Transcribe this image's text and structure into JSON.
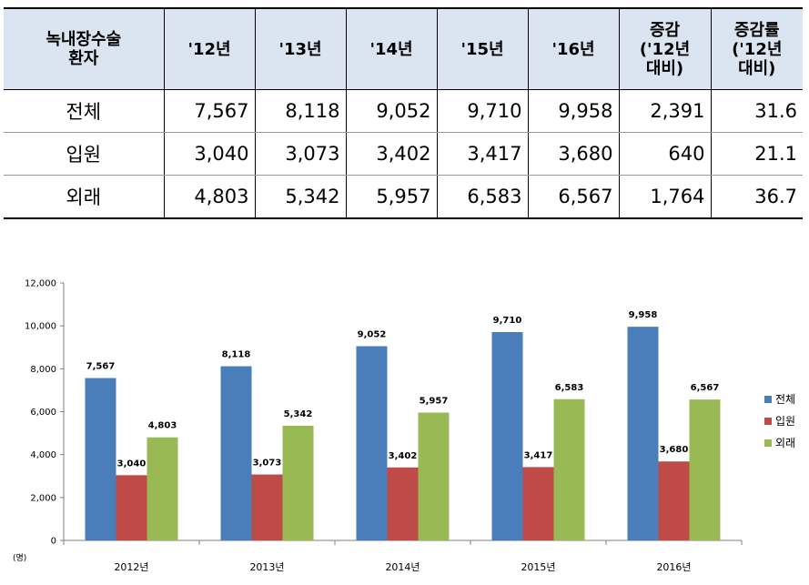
{
  "table": {
    "headers": [
      [
        "녹내장수술",
        "환자"
      ],
      [
        "'12년"
      ],
      [
        "'13년"
      ],
      [
        "'14년"
      ],
      [
        "'15년"
      ],
      [
        "'16년"
      ],
      [
        "증감",
        "('12년",
        "대비)"
      ],
      [
        "증감률",
        "('12년",
        "대비)"
      ]
    ],
    "rows": [
      {
        "label": "전체",
        "cells": [
          "7,567",
          "8,118",
          "9,052",
          "9,710",
          "9,958",
          "2,391",
          "31.6"
        ]
      },
      {
        "label": "입원",
        "cells": [
          "3,040",
          "3,073",
          "3,402",
          "3,417",
          "3,680",
          "640",
          "21.1"
        ]
      },
      {
        "label": "외래",
        "cells": [
          "4,803",
          "5,342",
          "5,957",
          "6,583",
          "6,567",
          "1,764",
          "36.7"
        ]
      }
    ]
  },
  "chart_data": {
    "type": "bar",
    "categories": [
      "2012년",
      "2013년",
      "2014년",
      "2015년",
      "2016년"
    ],
    "series": [
      {
        "name": "전체",
        "color": "#4a7ebb",
        "values": [
          7567,
          8118,
          9052,
          9710,
          9958
        ],
        "labels": [
          "7,567",
          "8,118",
          "9,052",
          "9,710",
          "9,958"
        ]
      },
      {
        "name": "입원",
        "color": "#be4b48",
        "values": [
          3040,
          3073,
          3402,
          3417,
          3680
        ],
        "labels": [
          "3,040",
          "3,073",
          "3,402",
          "3,417",
          "3,680"
        ]
      },
      {
        "name": "외래",
        "color": "#98b954",
        "values": [
          4803,
          5342,
          5957,
          6583,
          6567
        ],
        "labels": [
          "4,803",
          "5,342",
          "5,957",
          "6,583",
          "6,567"
        ]
      }
    ],
    "ylim": [
      0,
      12000
    ],
    "yticks": [
      "0",
      "2,000",
      "4,000",
      "6,000",
      "8,000",
      "10,000",
      "12,000"
    ],
    "ytick_values": [
      0,
      2000,
      4000,
      6000,
      8000,
      10000,
      12000
    ],
    "unit_label": "(명)",
    "legend_position": "right",
    "grid": false
  }
}
